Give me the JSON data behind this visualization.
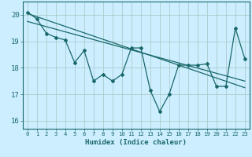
{
  "xlabel": "Humidex (Indice chaleur)",
  "background_color": "#cceeff",
  "grid_color": "#aacccc",
  "line_color": "#1a6868",
  "xlim": [
    -0.5,
    23.5
  ],
  "ylim": [
    15.7,
    20.5
  ],
  "yticks": [
    16,
    17,
    18,
    19,
    20
  ],
  "xticks": [
    0,
    1,
    2,
    3,
    4,
    5,
    6,
    7,
    8,
    9,
    10,
    11,
    12,
    13,
    14,
    15,
    16,
    17,
    18,
    19,
    20,
    21,
    22,
    23
  ],
  "y_data": [
    20.1,
    19.85,
    19.3,
    19.15,
    19.05,
    18.2,
    18.65,
    17.5,
    17.75,
    17.5,
    17.75,
    18.75,
    18.75,
    17.15,
    16.35,
    17.0,
    18.1,
    18.1,
    18.1,
    18.15,
    17.3,
    17.3,
    19.5,
    18.35
  ],
  "reg1_y_start": 20.05,
  "reg1_y_end": 17.25,
  "reg2_y_start": 19.75,
  "reg2_y_end": 17.5
}
